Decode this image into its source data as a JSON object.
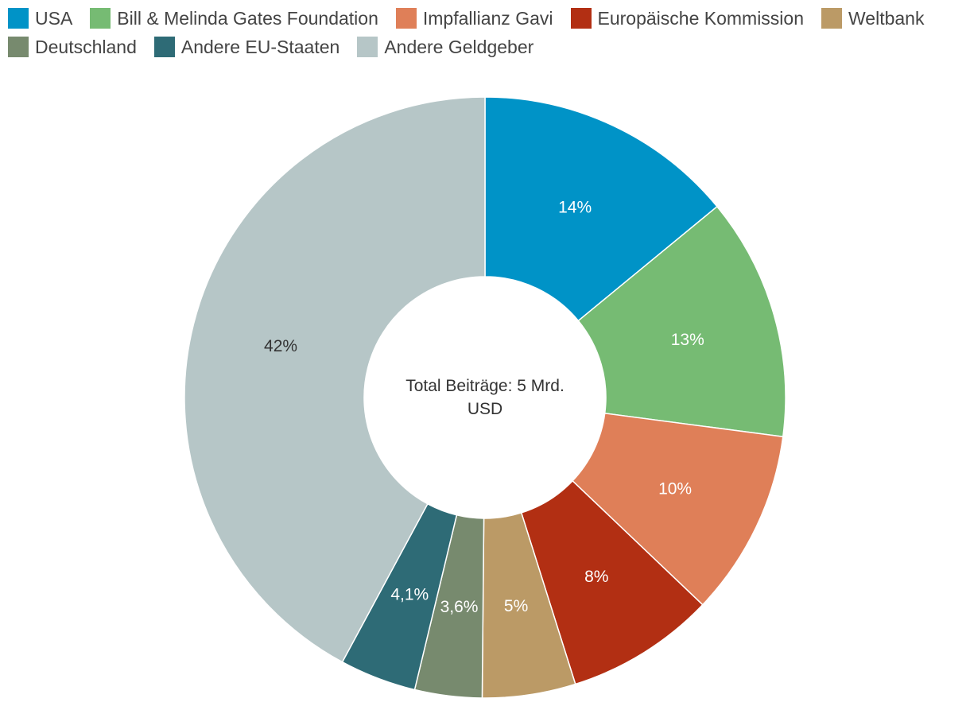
{
  "chart_data": {
    "type": "pie",
    "categories": [
      "USA",
      "Bill & Melinda Gates Foundation",
      "Impfallianz Gavi",
      "Europäische Kommission",
      "Weltbank",
      "Deutschland",
      "Andere EU-Staaten",
      "Andere Geldgeber"
    ],
    "values": [
      14,
      13,
      10,
      8,
      5,
      3.6,
      4.1,
      42
    ],
    "data_labels": [
      "14%",
      "13%",
      "10%",
      "8%",
      "5%",
      "3,6%",
      "4,1%",
      "42%"
    ],
    "colors": [
      "#0093c7",
      "#76bb73",
      "#df7f58",
      "#b22f13",
      "#bb9a66",
      "#778a6e",
      "#2e6b76",
      "#b6c6c7"
    ],
    "label_colors": [
      "#ffffff",
      "#ffffff",
      "#ffffff",
      "#ffffff",
      "#ffffff",
      "#ffffff",
      "#ffffff",
      "#333333"
    ],
    "hole": "donut",
    "center_text": [
      "Total Beiträge: 5 Mrd.",
      "USD"
    ],
    "legend_position": "top-left",
    "start_angle_deg": 0,
    "direction": "clockwise"
  }
}
